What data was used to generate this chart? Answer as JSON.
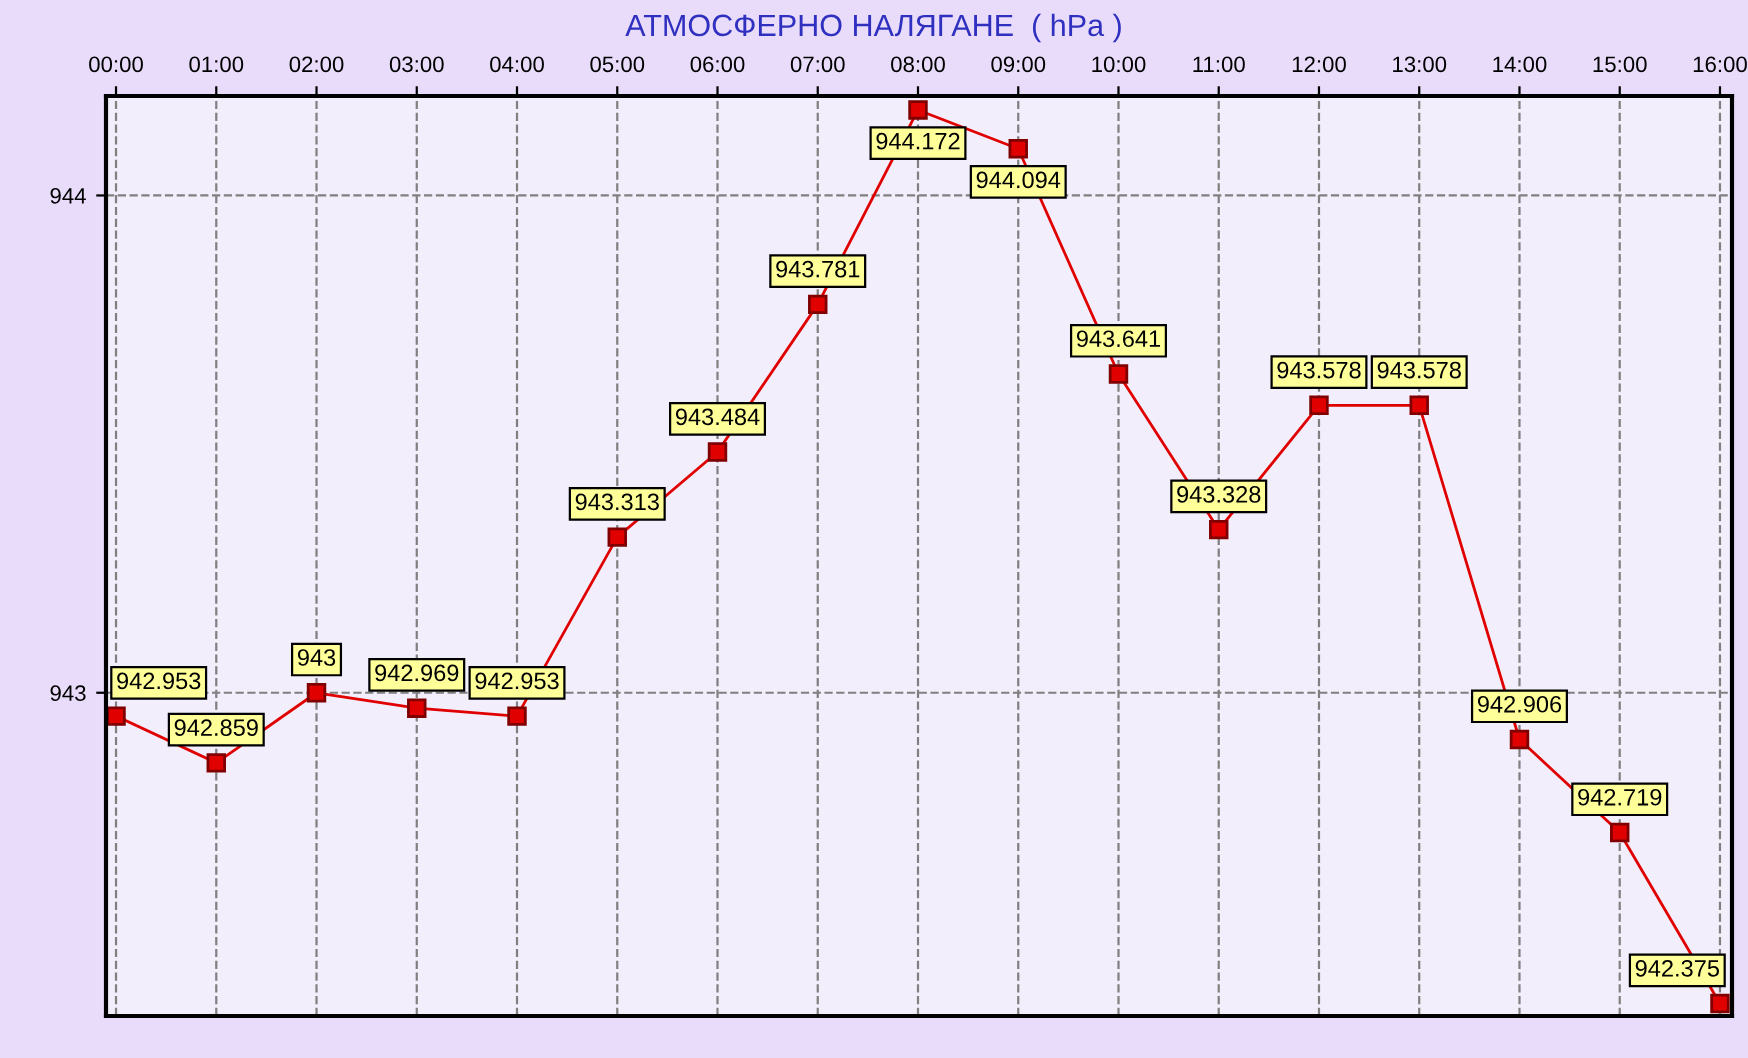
{
  "chart_data": {
    "type": "line",
    "title": "АТМОСФЕРНО НАЛЯГАНЕ  ( hPa )",
    "x": [
      0,
      1,
      2,
      3,
      4,
      5,
      6,
      7,
      8,
      9,
      10,
      11,
      12,
      13,
      14,
      15,
      16
    ],
    "series": [
      {
        "color": "#e00000",
        "values": [
          942.953,
          942.859,
          943,
          942.969,
          942.953,
          943.313,
          943.484,
          943.781,
          944.172,
          944.094,
          943.641,
          943.328,
          943.578,
          943.578,
          942.906,
          942.719,
          942.375
        ]
      }
    ],
    "xlim": [
      -0.1,
      16.12
    ],
    "xticks": [
      {
        "value": 0,
        "label": "00:00"
      },
      {
        "value": 1,
        "label": "01:00"
      },
      {
        "value": 2,
        "label": "02:00"
      },
      {
        "value": 3,
        "label": "03:00"
      },
      {
        "value": 4,
        "label": "04:00"
      },
      {
        "value": 5,
        "label": "05:00"
      },
      {
        "value": 6,
        "label": "06:00"
      },
      {
        "value": 7,
        "label": "07:00"
      },
      {
        "value": 8,
        "label": "08:00"
      },
      {
        "value": 9,
        "label": "09:00"
      },
      {
        "value": 10,
        "label": "10:00"
      },
      {
        "value": 11,
        "label": "11:00"
      },
      {
        "value": 12,
        "label": "12:00"
      },
      {
        "value": 13,
        "label": "13:00"
      },
      {
        "value": 14,
        "label": "14:00"
      },
      {
        "value": 15,
        "label": "15:00"
      },
      {
        "value": 16,
        "label": "16:00"
      }
    ],
    "ylim": [
      942.35,
      944.2
    ],
    "yticks": [
      943,
      944
    ],
    "grid": true,
    "marker": "square",
    "line_style": "solid",
    "data_labels": true
  }
}
